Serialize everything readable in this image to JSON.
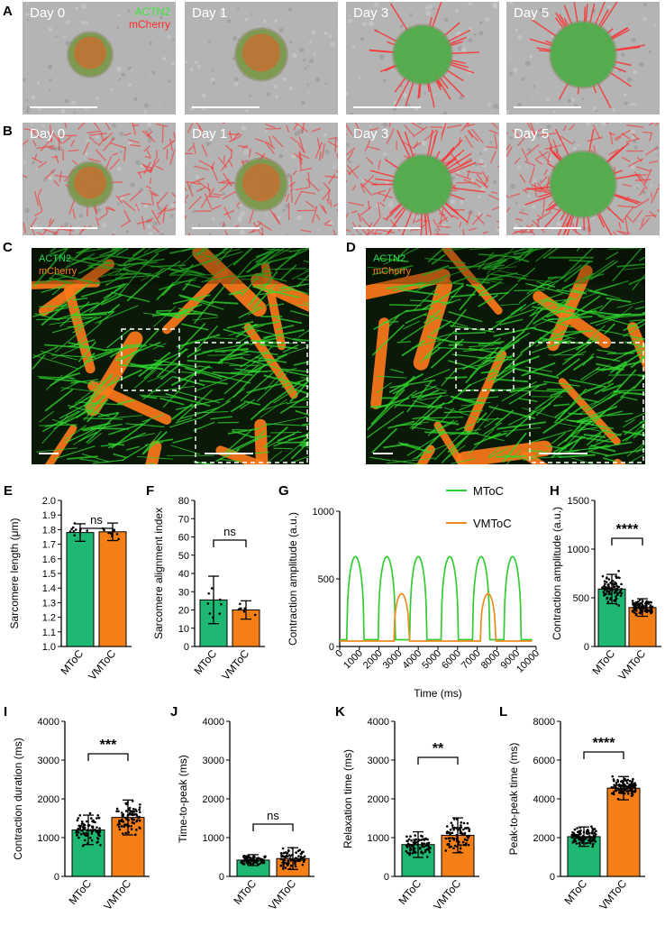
{
  "colors": {
    "mtoc": "#1fb872",
    "vmtoc": "#f57f17",
    "mtoc_line": "#33cc33",
    "vmtoc_line": "#f08a1c",
    "actn2": "#39e639",
    "mcherry_red": "#ff2a2a",
    "mcherry_orange": "#ff7a1a"
  },
  "panels": {
    "A": {
      "label": "A",
      "days": [
        "Day 0",
        "Day 1",
        "Day 3",
        "Day 5"
      ],
      "channels": [
        "ACTN2",
        "mCherry"
      ]
    },
    "B": {
      "label": "B",
      "days": [
        "Day 0",
        "Day 1",
        "Day 3",
        "Day 5"
      ]
    },
    "C": {
      "label": "C",
      "channels": [
        "ACTN2",
        "mCherry"
      ]
    },
    "D": {
      "label": "D",
      "channels": [
        "ACTN2",
        "mCherry"
      ]
    }
  },
  "chart_data": [
    {
      "id": "E",
      "label": "E",
      "type": "bar",
      "categories": [
        "MToC",
        "VMToC"
      ],
      "values": [
        1.78,
        1.785
      ],
      "errors": [
        0.06,
        0.06
      ],
      "ylabel": "Sarcomere length (μm)",
      "ylim": [
        1.0,
        2.0
      ],
      "yticks": [
        "1.0",
        "1.1",
        "1.2",
        "1.3",
        "1.4",
        "1.5",
        "1.6",
        "1.7",
        "1.8",
        "1.9",
        "2.0"
      ],
      "significance": "ns"
    },
    {
      "id": "F",
      "label": "F",
      "type": "bar",
      "categories": [
        "MToC",
        "VMToC"
      ],
      "values": [
        25.5,
        20
      ],
      "errors": [
        13,
        5
      ],
      "ylabel": "Sarcomere alignment index",
      "ylim": [
        0,
        80
      ],
      "yticks": [
        "0",
        "10",
        "20",
        "30",
        "40",
        "50",
        "60",
        "70",
        "80"
      ],
      "significance": "ns"
    },
    {
      "id": "G",
      "label": "G",
      "type": "line",
      "xlabel": "Time (ms)",
      "ylabel": "Contraction amplitude (a.u.)",
      "xlim": [
        0,
        10000
      ],
      "ylim": [
        0,
        1000
      ],
      "xticks": [
        "0",
        "1000",
        "2000",
        "3000",
        "4000",
        "5000",
        "6000",
        "7000",
        "8000",
        "9000",
        "10000"
      ],
      "yticks": [
        "0",
        "500",
        "1000"
      ],
      "series": [
        {
          "name": "MToC",
          "baseline": 50,
          "peak": 665,
          "duration": 850,
          "peak_times": [
            800,
            2400,
            4000,
            5600,
            7200,
            8800
          ]
        },
        {
          "name": "VMToC",
          "baseline": 40,
          "peak": 390,
          "duration": 750,
          "peak_times": [
            3150,
            7550
          ]
        }
      ]
    },
    {
      "id": "H",
      "label": "H",
      "type": "bar",
      "categories": [
        "MToC",
        "VMToC"
      ],
      "values": [
        590,
        400
      ],
      "errors": [
        150,
        90
      ],
      "ylabel": "Contraction amplitude (a.u.)",
      "ylim": [
        0,
        1500
      ],
      "yticks": [
        "0",
        "500",
        "1000",
        "1500"
      ],
      "significance": "****"
    },
    {
      "id": "I",
      "label": "I",
      "type": "bar",
      "categories": [
        "MToC",
        "VMToC"
      ],
      "values": [
        1200,
        1520
      ],
      "errors": [
        380,
        450
      ],
      "ylabel": "Contraction duration (ms)",
      "ylim": [
        0,
        4000
      ],
      "yticks": [
        "0",
        "1000",
        "2000",
        "3000",
        "4000"
      ],
      "significance": "***"
    },
    {
      "id": "J",
      "label": "J",
      "type": "bar",
      "categories": [
        "MToC",
        "VMToC"
      ],
      "values": [
        420,
        460
      ],
      "errors": [
        140,
        280
      ],
      "ylabel": "Time-to-peak (ms)",
      "ylim": [
        0,
        4000
      ],
      "yticks": [
        "0",
        "1000",
        "2000",
        "3000",
        "4000"
      ],
      "significance": "ns"
    },
    {
      "id": "K",
      "label": "K",
      "type": "bar",
      "categories": [
        "MToC",
        "VMToC"
      ],
      "values": [
        820,
        1060
      ],
      "errors": [
        330,
        450
      ],
      "ylabel": "Relaxation time (ms)",
      "ylim": [
        0,
        4000
      ],
      "yticks": [
        "0",
        "1000",
        "2000",
        "3000",
        "4000"
      ],
      "significance": "**"
    },
    {
      "id": "L",
      "label": "L",
      "type": "bar",
      "categories": [
        "MToC",
        "VMToC"
      ],
      "values": [
        2050,
        4550
      ],
      "errors": [
        500,
        600
      ],
      "ylabel": "Peak-to-peak time (ms)",
      "ylim": [
        0,
        8000
      ],
      "yticks": [
        "0",
        "2000",
        "4000",
        "6000",
        "8000"
      ],
      "significance": "****"
    }
  ]
}
